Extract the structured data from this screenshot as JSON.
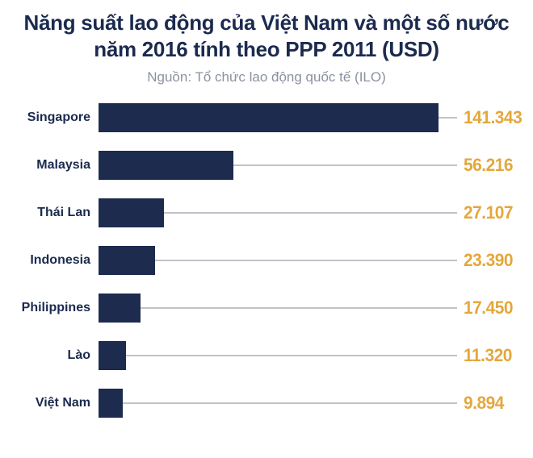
{
  "header": {
    "title": "Năng suất lao động của Việt Nam và một số nước năm 2016 tính theo PPP 2011 (USD)",
    "subtitle": "Nguồn: Tổ chức lao động quốc tế (ILO)"
  },
  "chart_data": {
    "type": "bar",
    "orientation": "horizontal",
    "title": "Năng suất lao động của Việt Nam và một số nước năm 2016 tính theo PPP 2011 (USD)",
    "source": "Nguồn: Tổ chức lao động quốc tế (ILO)",
    "categories": [
      "Singapore",
      "Malaysia",
      "Thái Lan",
      "Indonesia",
      "Philippines",
      "Lào",
      "Việt Nam"
    ],
    "values": [
      141343,
      56216,
      27107,
      23390,
      17450,
      11320,
      9894
    ],
    "value_labels": [
      "141.343",
      "56.216",
      "27.107",
      "23.390",
      "17.450",
      "11.320",
      "9.894"
    ],
    "xlim": [
      0,
      141343
    ],
    "unit": "USD",
    "grid": false,
    "legend": false
  },
  "colors": {
    "bar_navy": "#1D2C4E",
    "text_navy": "#1B2A4E",
    "value_gold": "#E4A73C",
    "subtitle_gray": "#8B919F",
    "connector_gray": "#BFC3C9",
    "background": "#FFFFFF"
  }
}
